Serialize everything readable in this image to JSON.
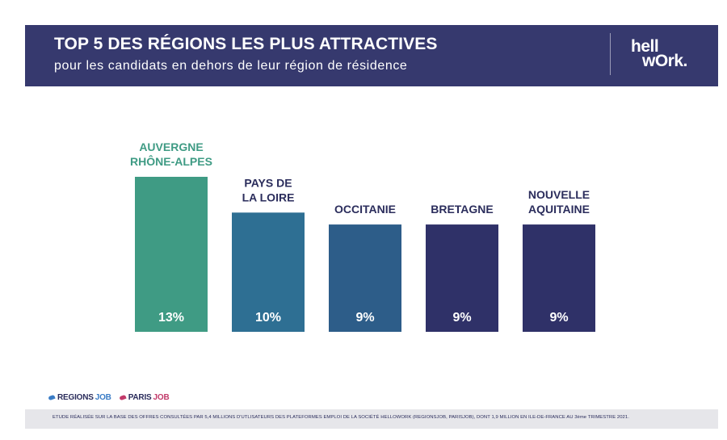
{
  "header": {
    "title": "TOP 5 DES RÉGIONS LES PLUS ATTRACTIVES",
    "subtitle": "pour les candidats en dehors de leur région de résidence",
    "logo_line1": "hell",
    "logo_line2": "wOrk",
    "logo_mark": "."
  },
  "chart_data": {
    "type": "bar",
    "title": "TOP 5 DES RÉGIONS LES PLUS ATTRACTIVES",
    "subtitle": "pour les candidats en dehors de leur région de résidence",
    "categories": [
      [
        "AUVERGNE",
        "RHÔNE-ALPES"
      ],
      [
        "PAYS DE",
        "LA LOIRE"
      ],
      [
        "OCCITANIE"
      ],
      [
        "BRETAGNE"
      ],
      [
        "NOUVELLE",
        "AQUITAINE"
      ]
    ],
    "values": [
      13,
      10,
      9,
      9,
      9
    ],
    "value_labels": [
      "13%",
      "10%",
      "9%",
      "9%",
      "9%"
    ],
    "unit": "%",
    "ylim": [
      0,
      13
    ],
    "grid": false,
    "legend": "none",
    "colors": [
      "#3f9b84",
      "#2e6f93",
      "#2d5d89",
      "#2f3168",
      "#2f3168"
    ],
    "label_colors": [
      "#3f9b84",
      "#2b2d5c",
      "#2b2d5c",
      "#2b2d5c",
      "#2b2d5c"
    ]
  },
  "brands": {
    "regionsjob_a": "REGIONS",
    "regionsjob_b": "JOB",
    "parisjob_a": "PARIS",
    "parisjob_b": "JOB"
  },
  "footer": {
    "note": "ETUDE RÉALISÉE SUR LA BASE DES OFFRES CONSULTÉES PAR 5,4 MILLIONS D'UTLISATEURS DES PLATEFORMES EMPLOI DE LA SOCIÉTÉ HELLOWORK (REGIONSJOB, PARISJOB), DONT 1,9 MILLION EN ILE-DE-FRANCE AU 3ème TRIMESTRE 2021."
  }
}
